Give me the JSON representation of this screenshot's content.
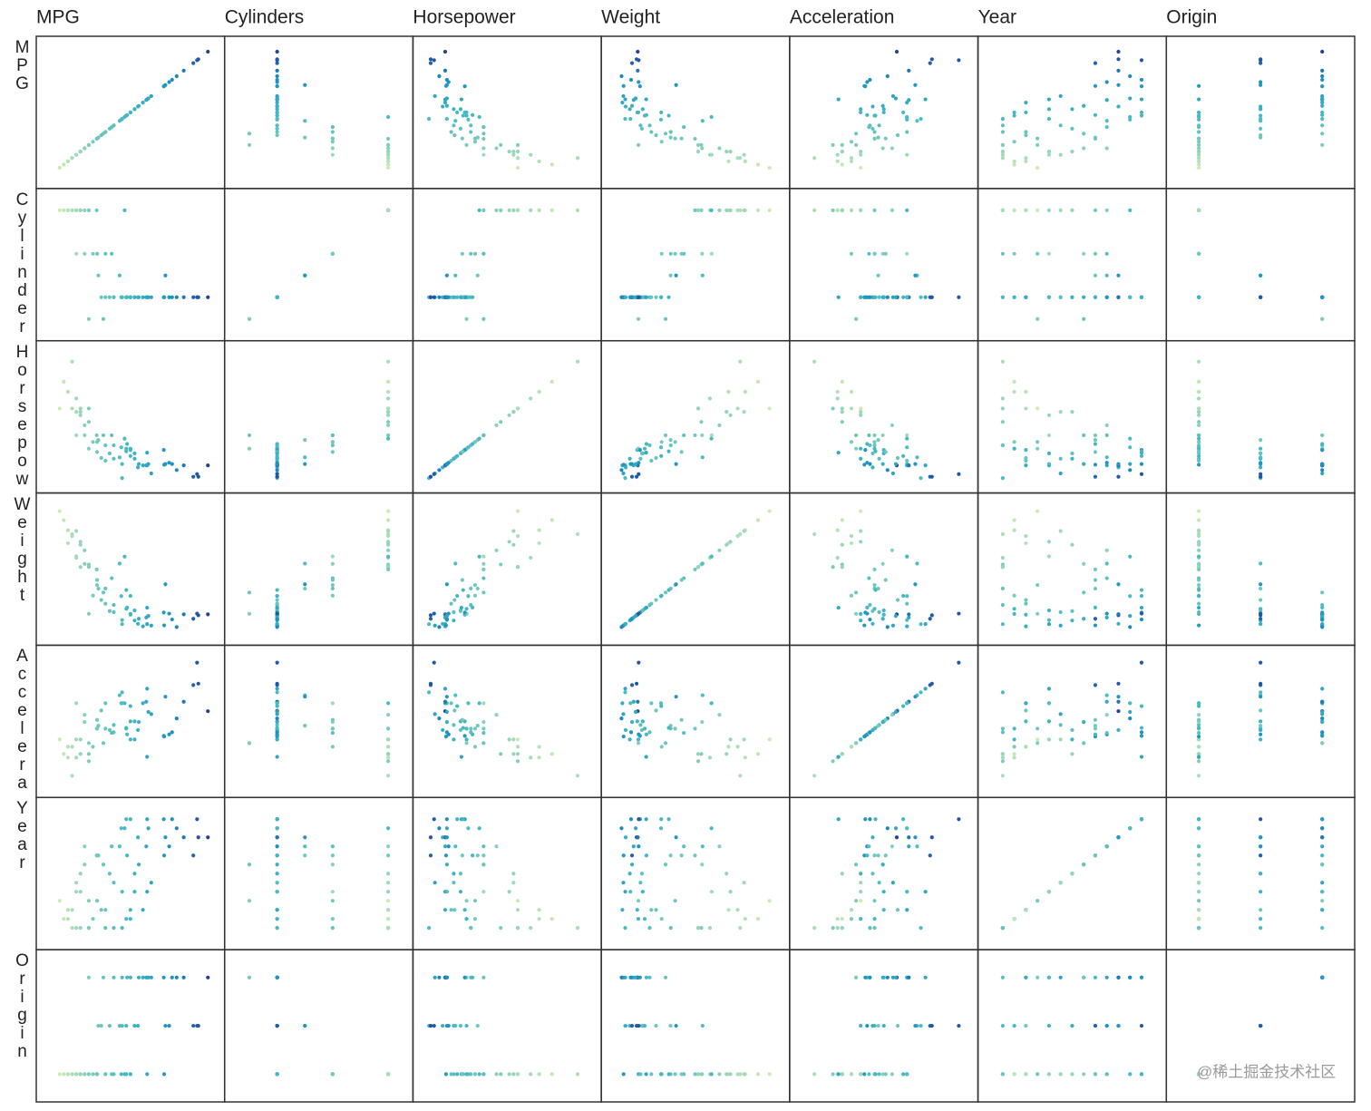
{
  "chart_data": {
    "type": "scatter_matrix",
    "column_labels": [
      "MPG",
      "Cylinders",
      "Horsepower",
      "Weight",
      "Acceleration",
      "Year",
      "Origin"
    ],
    "row_labels": [
      "MPG",
      "Cylinder",
      "Horsepow",
      "Weight",
      "Accelera",
      "Year",
      "Origin"
    ],
    "color_by": 0,
    "color_scale": [
      "#edf8b1",
      "#7fcdbb",
      "#41b6c4",
      "#1d91c0",
      "#253494"
    ],
    "dimensions": [
      {
        "lim": [
          8,
          48
        ],
        "values": [
          18,
          15,
          18,
          16,
          14,
          24,
          26,
          22,
          27,
          28,
          19,
          13,
          12,
          22,
          28,
          13,
          21,
          11,
          20,
          29,
          32,
          15,
          26,
          16,
          33,
          24,
          15,
          23,
          29,
          17,
          30,
          21.5,
          16,
          31,
          18,
          20.3,
          19.9,
          43.1,
          36.1,
          27.2,
          25.4,
          31.8,
          17,
          37.3,
          23.5,
          46.6,
          44.3,
          29.8,
          40.8,
          32.3,
          36.4,
          26.6,
          39.1,
          25.8,
          38,
          36,
          44,
          32,
          27,
          28,
          20,
          14
        ]
      },
      {
        "lim": [
          2.5,
          8.5
        ],
        "values": [
          8,
          8,
          8,
          8,
          8,
          4,
          4,
          6,
          4,
          4,
          6,
          8,
          8,
          4,
          4,
          8,
          4,
          8,
          6,
          4,
          4,
          6,
          4,
          8,
          4,
          4,
          8,
          4,
          4,
          6,
          4,
          3,
          8,
          4,
          3,
          5,
          8,
          4,
          4,
          4,
          5,
          4,
          8,
          4,
          6,
          4,
          4,
          4,
          4,
          4,
          5,
          8,
          4,
          4,
          4,
          4,
          4,
          4,
          4,
          4,
          6,
          8
        ]
      },
      {
        "lim": [
          40,
          235
        ],
        "values": [
          130,
          165,
          150,
          150,
          220,
          95,
          46,
          95,
          90,
          90,
          100,
          175,
          190,
          72,
          88,
          175,
          76,
          150,
          100,
          83,
          65,
          110,
          67,
          140,
          53,
          75,
          145,
          83,
          75,
          110,
          67,
          110,
          145,
          65,
          90,
          103,
          110,
          48,
          66,
          97,
          77,
          65,
          125,
          69,
          110,
          65,
          48,
          62,
          65,
          67,
          67,
          105,
          58,
          92,
          67,
          88,
          52,
          84,
          86,
          79,
          85,
          150
        ]
      },
      {
        "lim": [
          1550,
          5200
        ],
        "values": [
          3504,
          3693,
          3436,
          3433,
          4354,
          2372,
          1835,
          2833,
          2264,
          2123,
          2634,
          4464,
          4746,
          2408,
          2100,
          4100,
          2511,
          4997,
          2930,
          2219,
          1836,
          3730,
          1950,
          4141,
          1795,
          2171,
          4440,
          2202,
          1937,
          3520,
          1985,
          2720,
          4055,
          1773,
          2124,
          2830,
          3365,
          1985,
          1800,
          2300,
          3530,
          2020,
          3900,
          2130,
          3120,
          2110,
          2085,
          1845,
          2110,
          2065,
          2950,
          3725,
          1755,
          2620,
          1965,
          2160,
          2130,
          2295,
          2790,
          2625,
          3070,
          4300
        ]
      },
      {
        "lim": [
          7.5,
          25.5
        ],
        "values": [
          12,
          11.5,
          11,
          12,
          9,
          15,
          20.5,
          15.5,
          15.5,
          14,
          13,
          11.5,
          12,
          19,
          16.5,
          13,
          18,
          14,
          15.5,
          16.5,
          21,
          19,
          19,
          14,
          17.5,
          16,
          14,
          15.3,
          14,
          16.4,
          16.4,
          13.5,
          12,
          19,
          13.5,
          15.9,
          15.5,
          21.5,
          14.4,
          14.7,
          20.1,
          19.2,
          17.4,
          14.7,
          14.9,
          17.9,
          21.7,
          15.3,
          19.2,
          17.8,
          19.9,
          19,
          16.9,
          19,
          15,
          14.5,
          24.6,
          11.6,
          15.6,
          18.6,
          16.7,
          13
        ]
      },
      {
        "lim": [
          68.8,
          83.2
        ],
        "values": [
          70,
          70,
          70,
          70,
          70,
          70,
          70,
          70,
          71,
          71,
          71,
          71,
          71,
          72,
          72,
          72,
          72,
          73,
          73,
          74,
          74,
          74,
          74,
          74,
          75,
          75,
          75,
          76,
          76,
          77,
          77,
          77,
          76,
          72,
          73,
          78,
          78,
          78,
          78,
          78,
          79,
          79,
          79,
          79,
          79,
          80,
          80,
          80,
          80,
          81,
          80,
          81,
          81,
          81,
          82,
          82,
          82,
          82,
          82,
          82,
          78,
          72
        ]
      },
      {
        "lim": [
          0.65,
          3.35
        ],
        "values": [
          1,
          1,
          1,
          1,
          1,
          3,
          2,
          1,
          2,
          1,
          1,
          1,
          1,
          1,
          3,
          1,
          2,
          1,
          1,
          2,
          3,
          1,
          3,
          1,
          3,
          1,
          1,
          2,
          2,
          1,
          3,
          3,
          1,
          3,
          3,
          2,
          1,
          2,
          1,
          3,
          2,
          3,
          1,
          2,
          1,
          3,
          2,
          2,
          3,
          3,
          2,
          1,
          3,
          1,
          3,
          3,
          2,
          1,
          1,
          1,
          1,
          1
        ]
      }
    ],
    "watermark": "@稀土掘金技术社区"
  }
}
